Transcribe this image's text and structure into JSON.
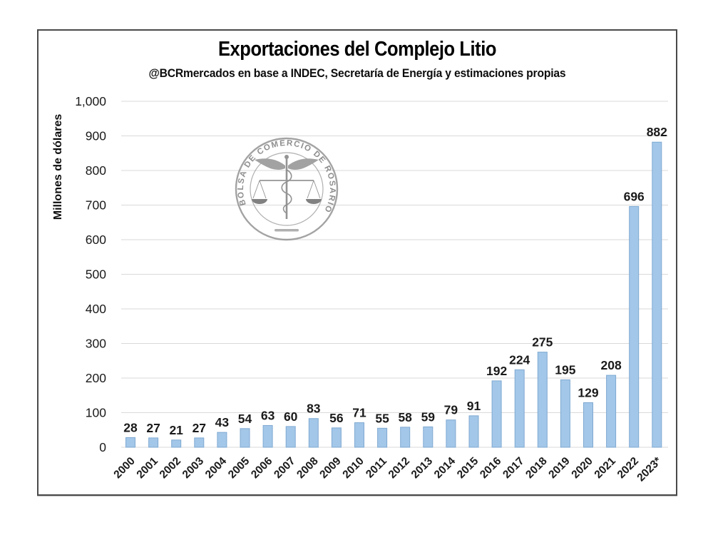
{
  "chart_data": {
    "type": "bar",
    "title": "Exportaciones del Complejo Litio",
    "subtitle": "@BCRmercados en base a INDEC, Secretaría de Energía y estimaciones propias",
    "ylabel": "Millones de dólares",
    "categories": [
      "2000",
      "2001",
      "2002",
      "2003",
      "2004",
      "2005",
      "2006",
      "2007",
      "2008",
      "2009",
      "2010",
      "2011",
      "2012",
      "2013",
      "2014",
      "2015",
      "2016",
      "2017",
      "2018",
      "2019",
      "2020",
      "2021",
      "2022",
      "2023*"
    ],
    "values": [
      28,
      27,
      21,
      27,
      43,
      54,
      63,
      60,
      83,
      56,
      71,
      55,
      58,
      59,
      79,
      91,
      192,
      224,
      275,
      195,
      129,
      208,
      696,
      882
    ],
    "ylim": [
      0,
      1000
    ],
    "yticks": [
      {
        "value": 0,
        "label": "0"
      },
      {
        "value": 100,
        "label": "100"
      },
      {
        "value": 200,
        "label": "200"
      },
      {
        "value": 300,
        "label": "300"
      },
      {
        "value": 400,
        "label": "400"
      },
      {
        "value": 500,
        "label": "500"
      },
      {
        "value": 600,
        "label": "600"
      },
      {
        "value": 700,
        "label": "700"
      },
      {
        "value": 800,
        "label": "800"
      },
      {
        "value": 900,
        "label": "900"
      },
      {
        "value": 1000,
        "label": "1,000"
      }
    ],
    "grid": true,
    "legend_position": "none",
    "bar_data_labels": true,
    "colors": {
      "bar_fill": "#A3C7E8",
      "bar_stroke": "#7FA9D2",
      "gridline": "#D9D9D9",
      "text": "#1A1A1A",
      "frame_border": "#4A4A4A",
      "logo_gray": "#8A8A8A",
      "logo_dark": "#5E5E5E"
    }
  },
  "logo": {
    "ring_text": "BOLSA DE COMERCIO DE ROSARIO"
  }
}
